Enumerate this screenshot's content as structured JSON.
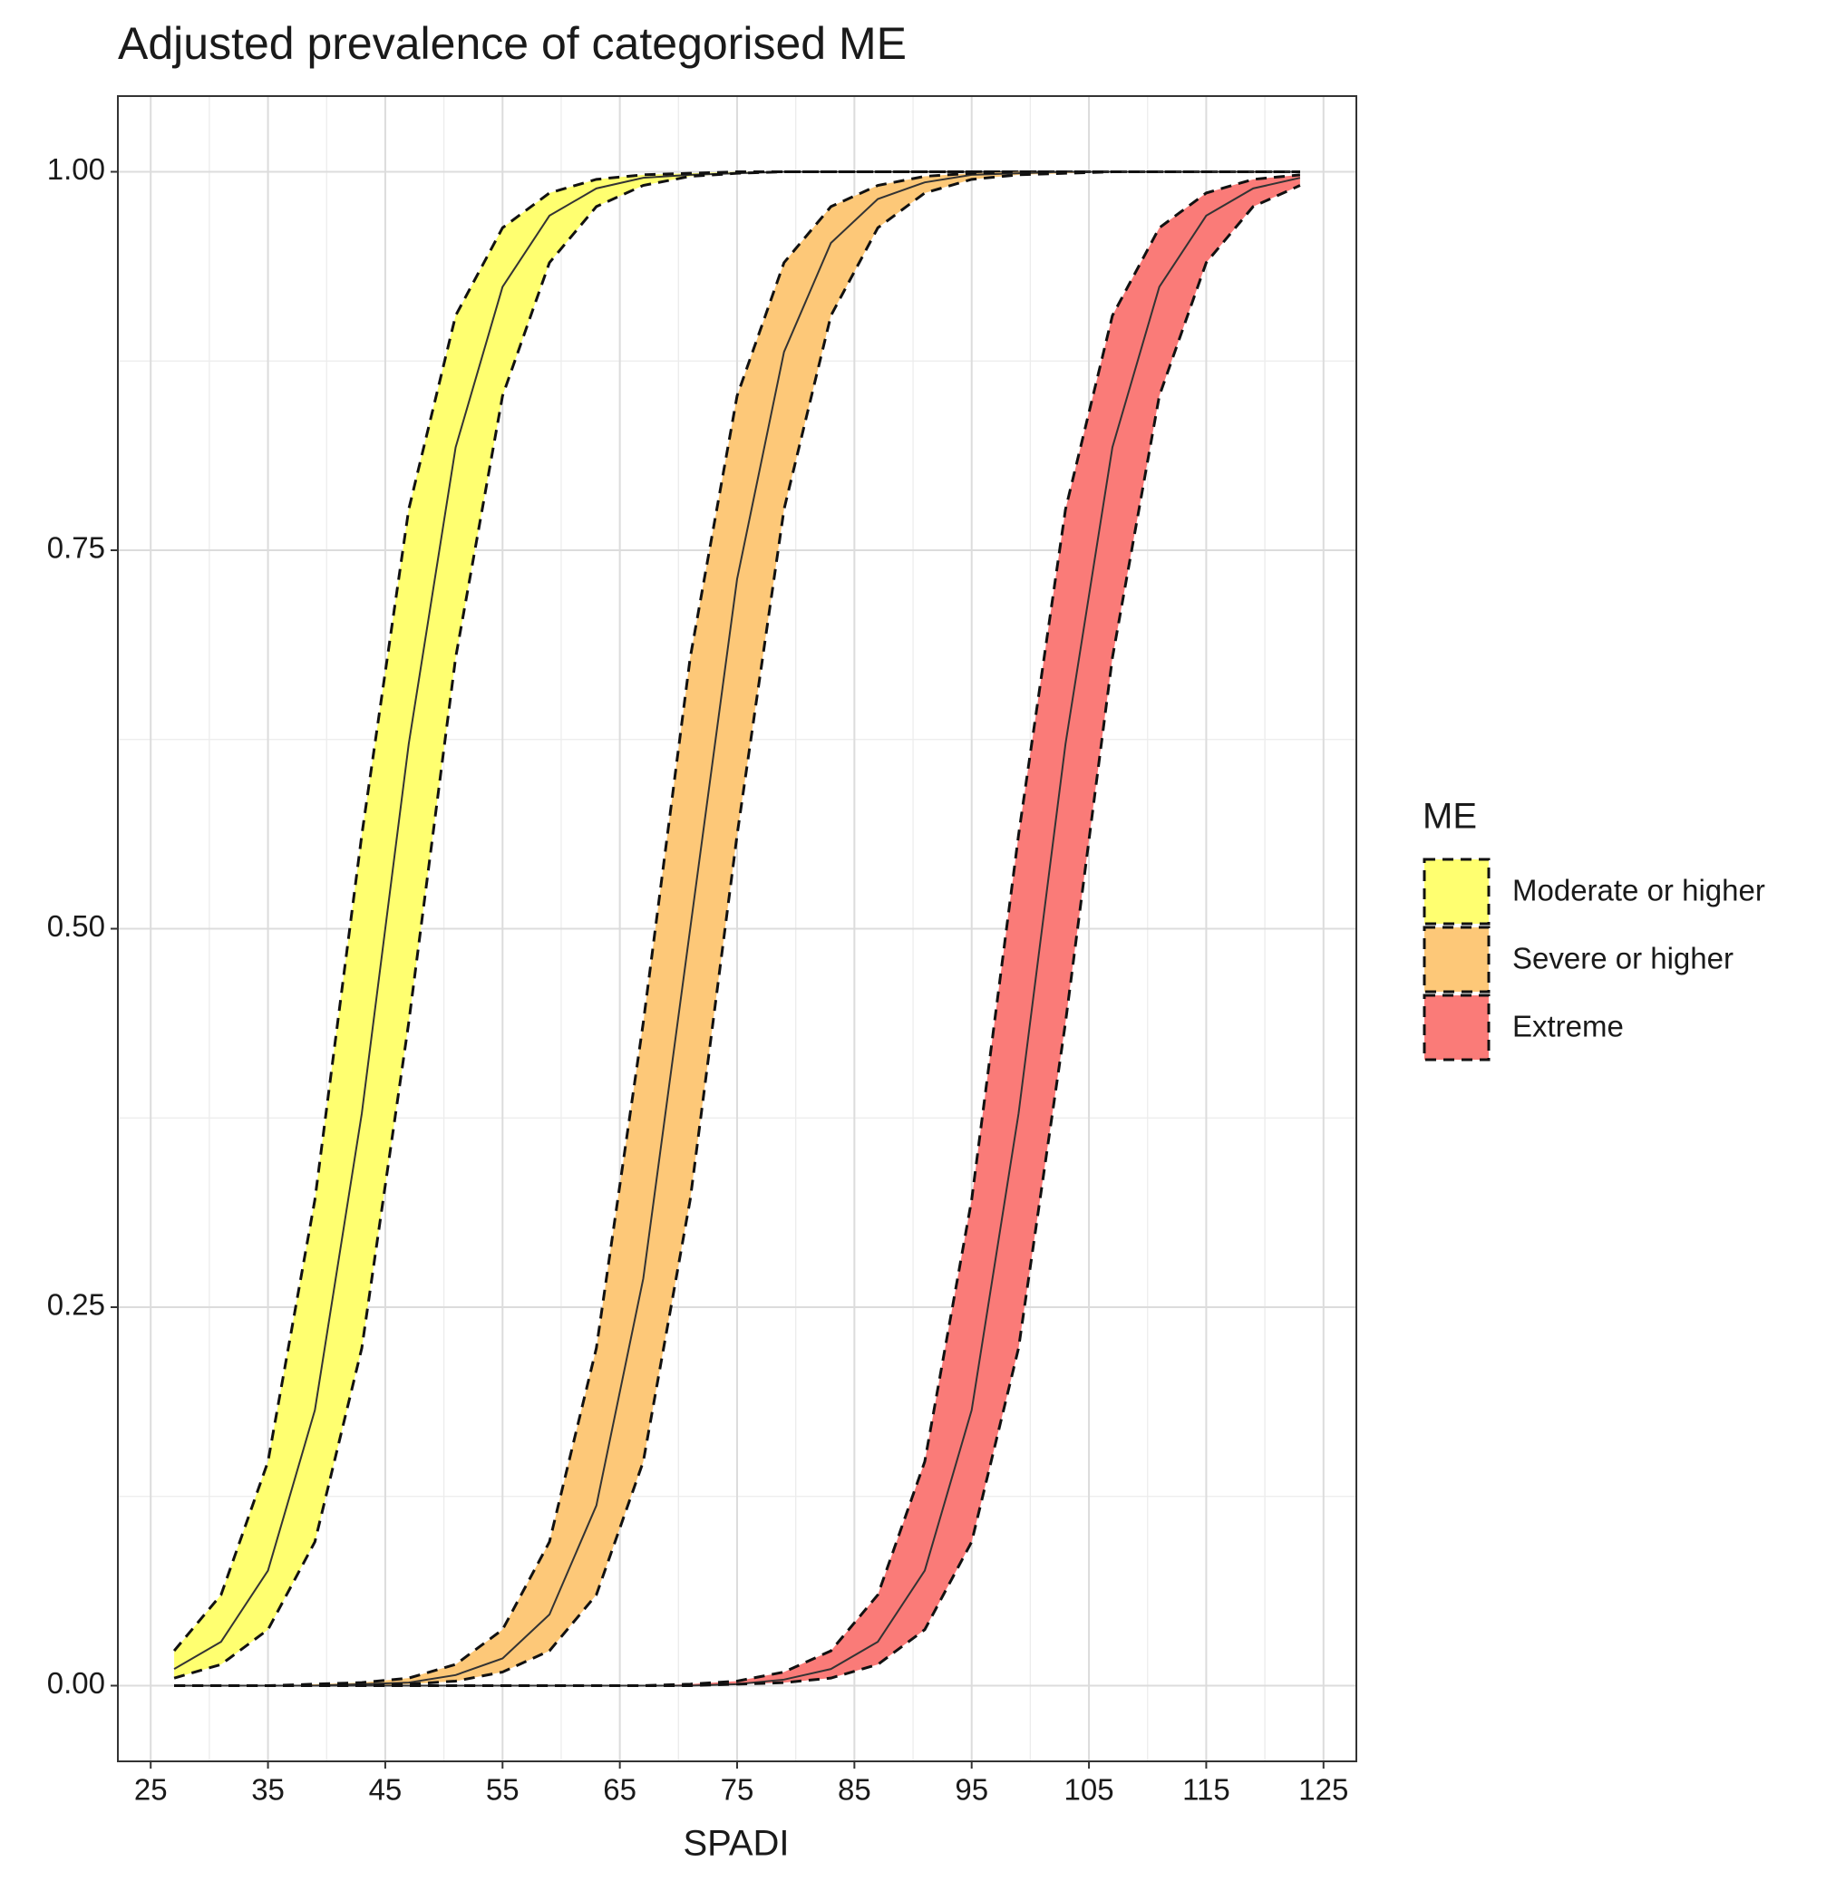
{
  "chart_data": {
    "type": "ribbon",
    "title": "Adjusted prevalence of categorised ME",
    "x_label": "SPADI",
    "legend_title": "ME",
    "legend_position": "right",
    "grid": true,
    "x": [
      27,
      31,
      35,
      39,
      43,
      47,
      51,
      55,
      59,
      63,
      67,
      71,
      75,
      79,
      83,
      87,
      91,
      95,
      99,
      103,
      107,
      111,
      115,
      119,
      123
    ],
    "xlim": [
      22.2,
      127.8
    ],
    "xticks": [
      25,
      35,
      45,
      55,
      65,
      75,
      85,
      95,
      105,
      115,
      125
    ],
    "ylim": [
      -0.05,
      1.05
    ],
    "yticks": [
      {
        "value": 0,
        "label": "0.00"
      },
      {
        "value": 0.25,
        "label": "0.25"
      },
      {
        "value": 0.5,
        "label": "0.50"
      },
      {
        "value": 0.75,
        "label": "0.75"
      },
      {
        "value": 1,
        "label": "1.00"
      }
    ],
    "series": [
      {
        "name": "Moderate or higher",
        "color": "#ffff70",
        "values": [
          0.011,
          0.029,
          0.076,
          0.182,
          0.378,
          0.622,
          0.818,
          0.924,
          0.971,
          0.989,
          0.996,
          0.998,
          0.999,
          1,
          1,
          1,
          1,
          1,
          1,
          1,
          1,
          1,
          1,
          1,
          1
        ],
        "upper": [
          0.023,
          0.06,
          0.148,
          0.321,
          0.562,
          0.777,
          0.905,
          0.963,
          0.986,
          0.995,
          0.998,
          0.999,
          1,
          1,
          1,
          1,
          1,
          1,
          1,
          1,
          1,
          1,
          1,
          1,
          1
        ],
        "lower": [
          0.005,
          0.014,
          0.037,
          0.095,
          0.223,
          0.438,
          0.679,
          0.852,
          0.94,
          0.977,
          0.991,
          0.997,
          0.999,
          1,
          1,
          1,
          1,
          1,
          1,
          1,
          1,
          1,
          1,
          1,
          1
        ]
      },
      {
        "name": "Severe or higher",
        "color": "#fdc878",
        "values": [
          0,
          0,
          0,
          0,
          0.001,
          0.002,
          0.007,
          0.018,
          0.047,
          0.119,
          0.269,
          0.5,
          0.731,
          0.881,
          0.953,
          0.982,
          0.993,
          0.998,
          0.999,
          1,
          1,
          1,
          1,
          1,
          1
        ],
        "upper": [
          0,
          0,
          0,
          0.001,
          0.002,
          0.005,
          0.014,
          0.037,
          0.095,
          0.223,
          0.438,
          0.679,
          0.852,
          0.94,
          0.977,
          0.991,
          0.997,
          0.999,
          1,
          1,
          1,
          1,
          1,
          1,
          1
        ],
        "lower": [
          0,
          0,
          0,
          0,
          0,
          0.001,
          0.003,
          0.009,
          0.023,
          0.06,
          0.148,
          0.321,
          0.562,
          0.777,
          0.905,
          0.963,
          0.986,
          0.995,
          0.998,
          0.999,
          1,
          1,
          1,
          1,
          1
        ]
      },
      {
        "name": "Extreme",
        "color": "#fa7b78",
        "values": [
          0,
          0,
          0,
          0,
          0,
          0,
          0,
          0,
          0,
          0,
          0,
          0,
          0.001,
          0.004,
          0.011,
          0.029,
          0.076,
          0.182,
          0.378,
          0.622,
          0.818,
          0.924,
          0.971,
          0.989,
          0.996
        ],
        "upper": [
          0,
          0,
          0,
          0,
          0,
          0,
          0,
          0,
          0,
          0,
          0,
          0.001,
          0.003,
          0.009,
          0.023,
          0.06,
          0.148,
          0.321,
          0.562,
          0.777,
          0.905,
          0.963,
          0.986,
          0.995,
          0.998
        ],
        "lower": [
          0,
          0,
          0,
          0,
          0,
          0,
          0,
          0,
          0,
          0,
          0,
          0,
          0.001,
          0.002,
          0.005,
          0.014,
          0.037,
          0.095,
          0.223,
          0.438,
          0.679,
          0.852,
          0.94,
          0.977,
          0.991
        ]
      }
    ]
  }
}
